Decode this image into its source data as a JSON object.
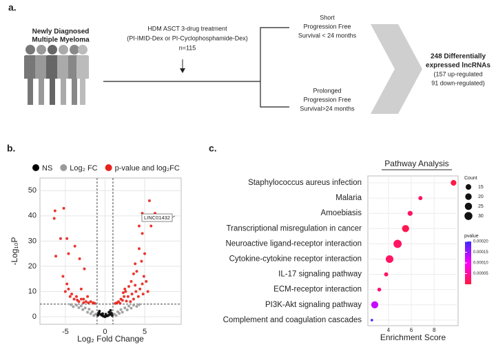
{
  "panel_labels": [
    "a.",
    "b.",
    "c."
  ],
  "diagram": {
    "cohort": [
      "Newly Diagnosed",
      "Multiple Myeloma"
    ],
    "treatment": [
      "HDM ASCT 3-drug treatment",
      "(PI-IMID-Dex or PI-Cyclophosphamide-Dex)",
      "n=115"
    ],
    "short": [
      "Short",
      "Progression Free",
      "Survival < 24 months"
    ],
    "prolonged": [
      "Prolonged",
      "Progression Free",
      "Survival>24 months"
    ],
    "result": [
      "248 Differentially",
      "expressed lncRNAs",
      "(157 up-regulated",
      "91 down-regulated)"
    ]
  },
  "chart_data": [
    {
      "type": "scatter",
      "xlabel": "Log₂ Fold Change",
      "ylabel": "-Log₁₀P",
      "xlim": [
        -8.2,
        9.6
      ],
      "ylim": [
        -3,
        55
      ],
      "xticks": [
        -5,
        0,
        5
      ],
      "yticks": [
        0,
        10,
        20,
        30,
        40,
        50
      ],
      "grid": true,
      "vlines": [
        -1,
        1
      ],
      "hline": 5,
      "legend": "top",
      "annotation": "LINC01432",
      "series": [
        {
          "name": "NS",
          "color": "#000000",
          "x": [
            -0.8,
            -0.6,
            -0.4,
            -0.2,
            0,
            0.2,
            0.4,
            0.6,
            0.8,
            -0.9,
            0.9,
            0.1,
            -0.3,
            0.5,
            -0.7,
            0.7
          ],
          "values": [
            1.5,
            1,
            0.6,
            0.2,
            0,
            0.3,
            0.5,
            0.9,
            1.4,
            0.6,
            0.5,
            1,
            1.2,
            1.8,
            2.2,
            2.5
          ]
        },
        {
          "name": "Log₂ FC",
          "color": "#9a9a9a",
          "x": [
            -1.2,
            -1.6,
            -2.0,
            -2.5,
            -3.0,
            -3.6,
            -4.3,
            -1.4,
            -2.2,
            -2.8,
            -3.3,
            -1.8,
            1.2,
            1.6,
            2.0,
            2.5,
            3.0,
            3.6,
            4.3,
            1.4,
            2.2,
            2.8,
            3.3,
            1.8,
            -4.0,
            4.0
          ],
          "values": [
            1,
            2,
            3,
            3.5,
            4.3,
            4.6,
            4.8,
            0.5,
            1.8,
            2.8,
            3.6,
            1.2,
            1,
            2,
            2.8,
            3.5,
            4.2,
            4.6,
            4.8,
            0.5,
            1.8,
            2.7,
            3.4,
            1.3,
            4,
            4.1
          ]
        },
        {
          "name": "p-value and log₂FC",
          "color": "#e8211b",
          "x": [
            -6.3,
            -6.4,
            -5.2,
            -5.6,
            -4.8,
            -6.2,
            -4.6,
            -3.8,
            -3.2,
            -2.6,
            -5.3,
            -4.8,
            -4.6,
            -5.0,
            -4.2,
            -3.6,
            -3.0,
            -2.7,
            -2.2,
            -3.9,
            -3.3,
            -2.4,
            -1.8,
            -4.4,
            -3.0,
            -2.1,
            -1.5,
            -2.7,
            -1.3,
            -3.5,
            5.6,
            4.7,
            6.3,
            5.8,
            4.3,
            4.7,
            5.0,
            4.3,
            4.6,
            3.8,
            3.6,
            4.0,
            4.9,
            5.2,
            4.7,
            3.3,
            2.6,
            3.0,
            2.4,
            2.0,
            1.7,
            1.5,
            2.2,
            3.4,
            3.9,
            4.4,
            2.9,
            3.6,
            1.3,
            2.7,
            4.2,
            3.2,
            2.5,
            5.4,
            4.8,
            1.9,
            3.8,
            2.3
          ],
          "values": [
            42,
            39,
            43,
            31,
            31,
            24,
            25,
            28,
            23,
            19,
            16,
            13,
            11,
            10,
            9,
            8,
            7,
            7,
            8,
            7,
            6,
            6,
            6,
            8,
            11,
            5.5,
            5.5,
            5.6,
            5.3,
            6.6,
            46,
            41,
            41,
            36,
            36,
            33,
            25,
            27,
            22,
            21,
            17,
            18,
            16,
            14,
            13,
            14,
            10,
            12,
            8,
            7,
            6,
            5.5,
            6.5,
            9,
            10,
            11,
            8,
            7,
            5.3,
            6.2,
            8,
            6,
            11,
            10,
            9,
            5.3,
            12.5,
            9.5
          ]
        }
      ]
    },
    {
      "type": "dot",
      "title": "Pathway Analysis",
      "xlabel": "Enrichment Score",
      "categories": [
        "Staphylococcus aureus infection",
        "Malaria",
        "Amoebiasis",
        "Transcriptional misregulation in cancer",
        "Neuroactive ligand-receptor interaction",
        "Cytokine-cytokine receptor interaction",
        "IL-17 signaling pathway",
        "ECM-receptor interaction",
        "PI3K-Akt signaling pathway",
        "Complement and coagulation cascades"
      ],
      "values": [
        9.7,
        6.8,
        5.9,
        5.5,
        4.8,
        4.1,
        3.8,
        3.2,
        2.8,
        2.55
      ],
      "counts": [
        15,
        8,
        12,
        24,
        32,
        28,
        8,
        7,
        24,
        3
      ],
      "pvalues": [
        5e-06,
        2e-05,
        2e-05,
        1e-05,
        2e-05,
        2e-05,
        2e-05,
        3e-05,
        0.00013,
        0.0002
      ],
      "xlim": [
        2.2,
        10.1
      ],
      "xticks": [
        4,
        6,
        8
      ],
      "grid": true,
      "size_legend": {
        "title": "Count",
        "ticks": [
          15,
          20,
          25,
          30
        ]
      },
      "color_legend": {
        "title": "pvalue",
        "lim": [
          0,
          0.0002
        ],
        "colors": [
          "#ff1a3c",
          "#ff00ff",
          "#3c28ff"
        ],
        "ticks": [
          5e-05,
          {
            "value": 0.0001,
            "label": "0.00010"
          },
          0.00015,
          {
            "value": 0.0002,
            "label": "0.00020"
          }
        ]
      }
    }
  ]
}
